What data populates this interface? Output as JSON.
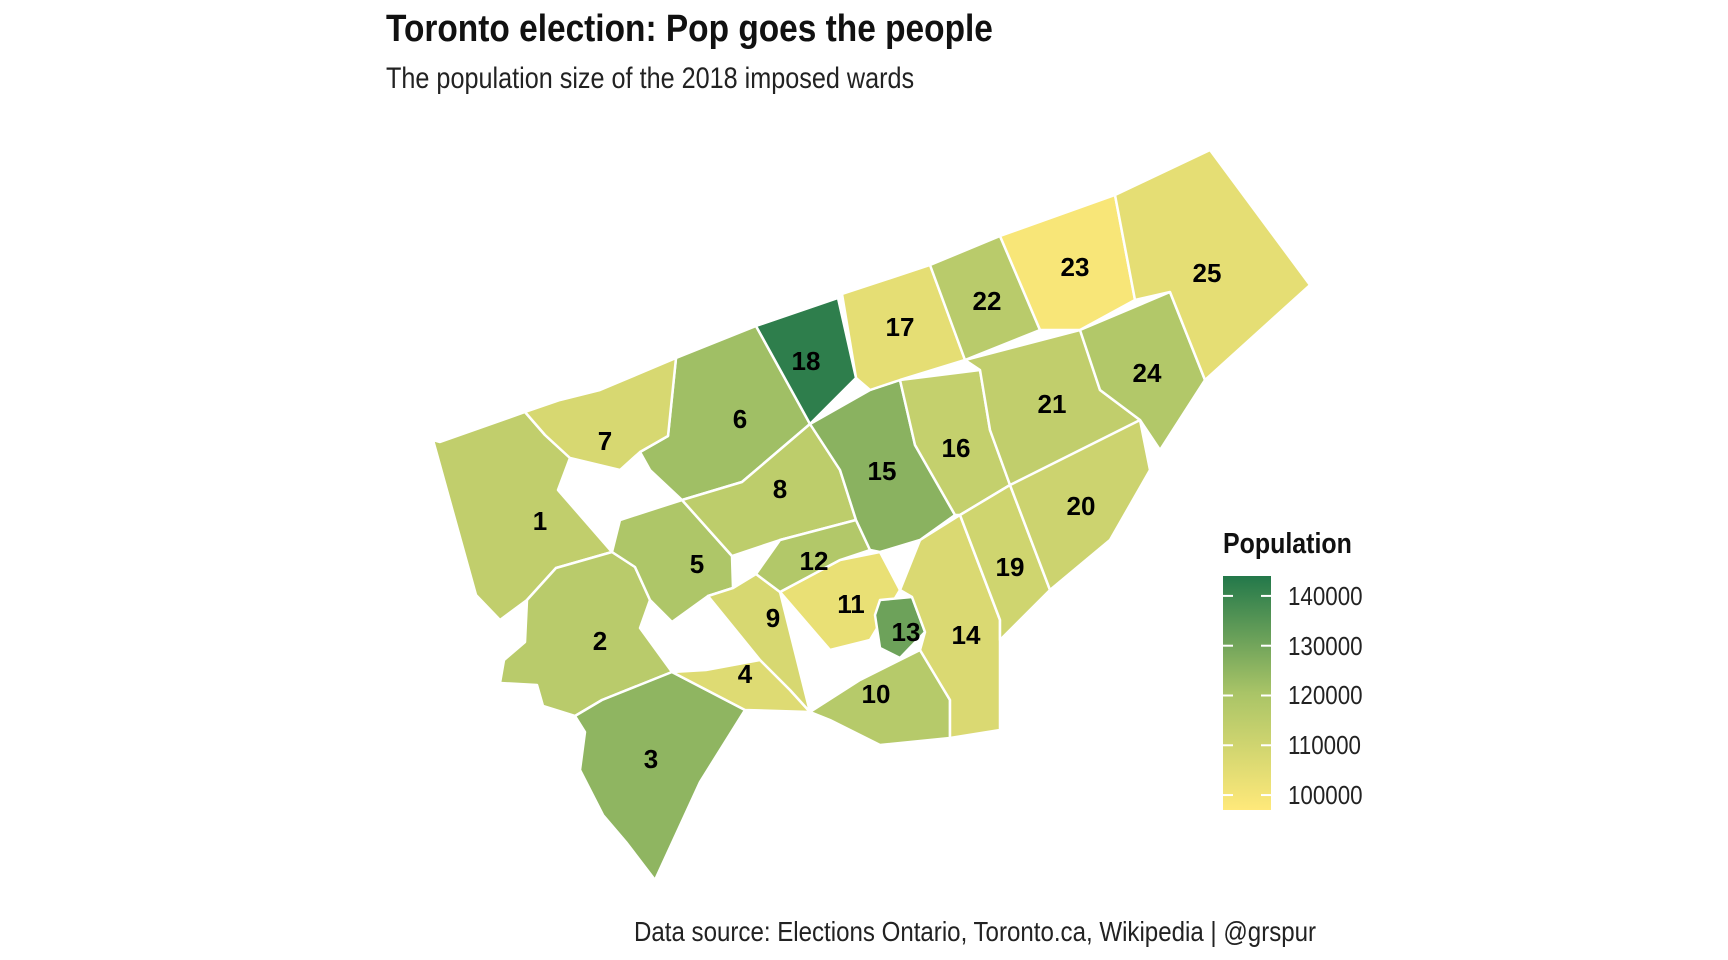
{
  "title": "Toronto election: Pop goes the people",
  "subtitle": "The population size of the 2018 imposed wards",
  "caption": "Data source:  Elections Ontario, Toronto.ca, Wikipedia  |  @grspur",
  "colors": {
    "low": "#FFE97A",
    "mid": "#A9C467",
    "high": "#23784A",
    "border": "#ffffff",
    "label": "#000000"
  },
  "legend": {
    "title": "Population",
    "min": 97000,
    "max": 144000,
    "ticks": [
      {
        "value": 140000,
        "label": "140000"
      },
      {
        "value": 130000,
        "label": "130000"
      },
      {
        "value": 120000,
        "label": "120000"
      },
      {
        "value": 110000,
        "label": "110000"
      },
      {
        "value": 100000,
        "label": "100000"
      }
    ]
  },
  "wards": [
    {
      "id": "1",
      "population": 114000
    },
    {
      "id": "2",
      "population": 116000
    },
    {
      "id": "3",
      "population": 125000
    },
    {
      "id": "4",
      "population": 106000
    },
    {
      "id": "5",
      "population": 119000
    },
    {
      "id": "6",
      "population": 122000
    },
    {
      "id": "7",
      "population": 108000
    },
    {
      "id": "8",
      "population": 115000
    },
    {
      "id": "9",
      "population": 108000
    },
    {
      "id": "10",
      "population": 117000
    },
    {
      "id": "11",
      "population": 103000
    },
    {
      "id": "12",
      "population": 118000
    },
    {
      "id": "13",
      "population": 131000
    },
    {
      "id": "14",
      "population": 107000
    },
    {
      "id": "15",
      "population": 126000
    },
    {
      "id": "16",
      "population": 113000
    },
    {
      "id": "17",
      "population": 104000
    },
    {
      "id": "18",
      "population": 142000
    },
    {
      "id": "19",
      "population": 110000
    },
    {
      "id": "20",
      "population": 111000
    },
    {
      "id": "21",
      "population": 114000
    },
    {
      "id": "22",
      "population": 116000
    },
    {
      "id": "23",
      "population": 99000
    },
    {
      "id": "24",
      "population": 118000
    },
    {
      "id": "25",
      "population": 104000
    }
  ]
}
